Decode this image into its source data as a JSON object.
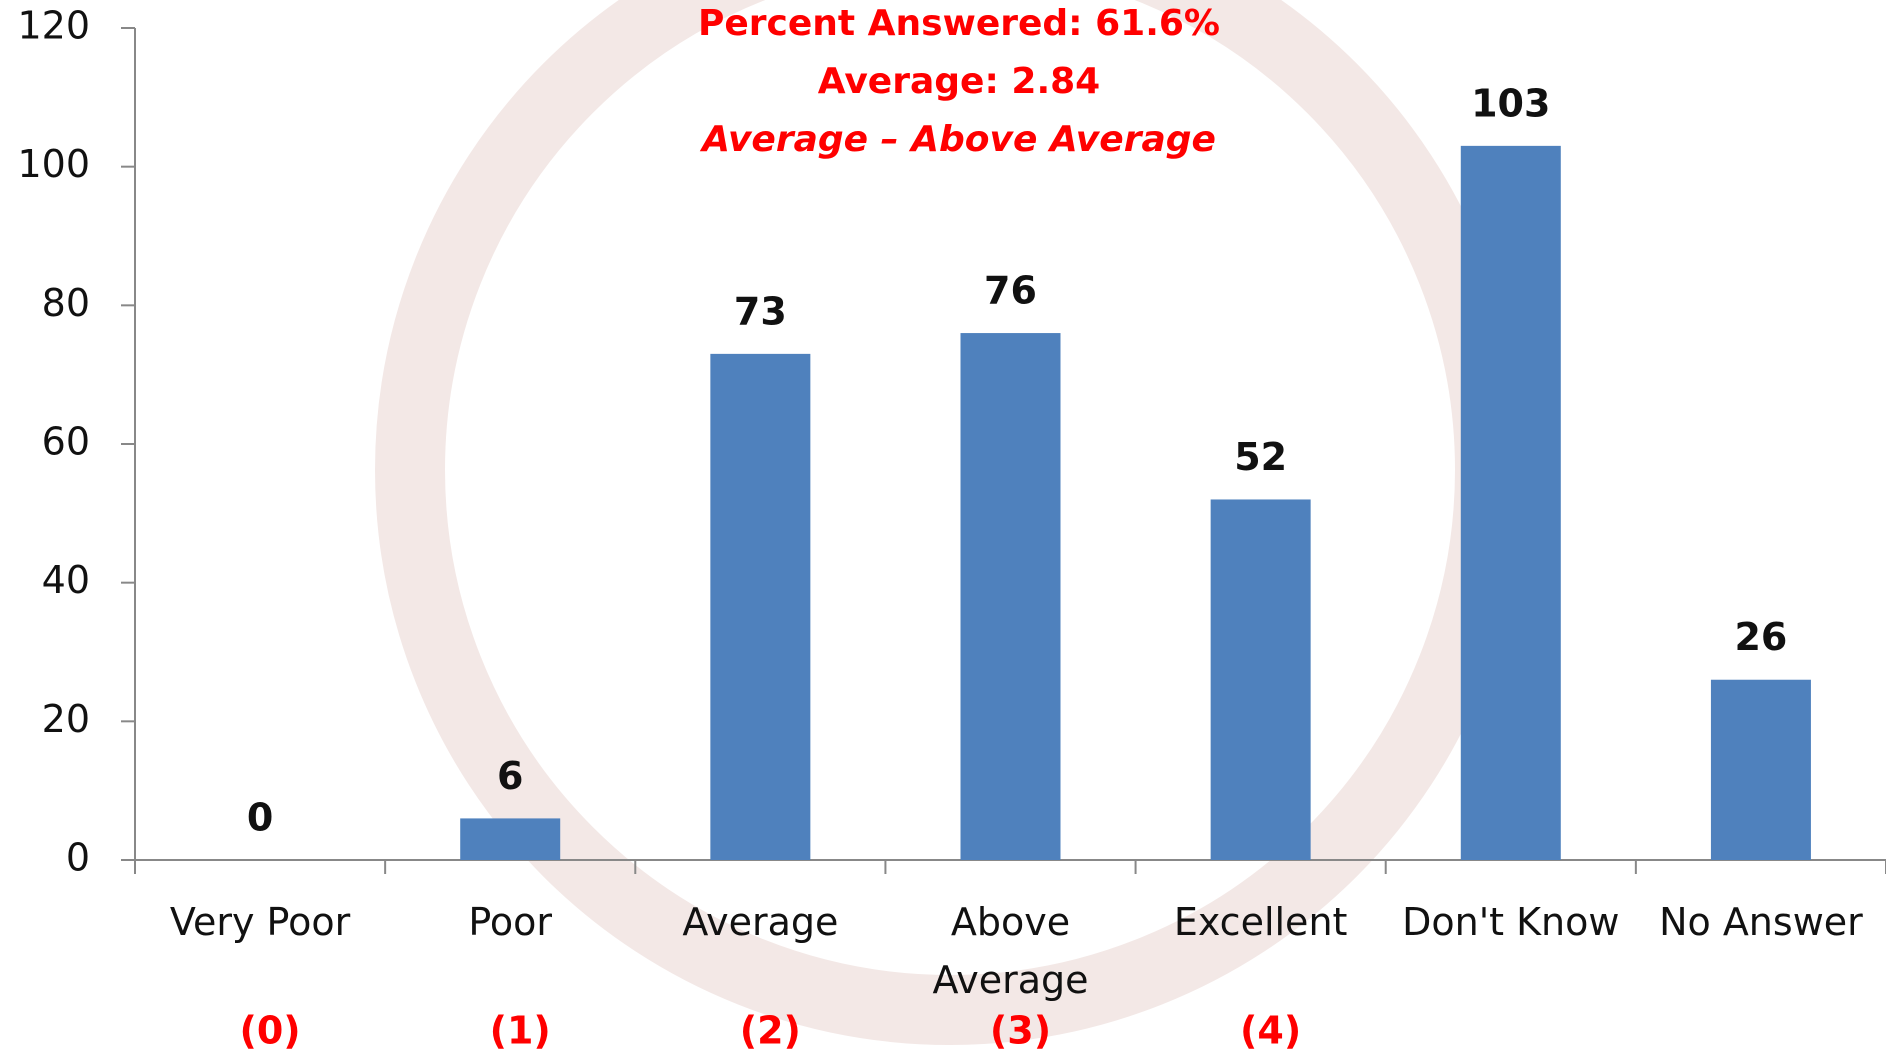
{
  "chart_data": {
    "type": "bar",
    "annotations": [
      "Percent Answered: 61.6%",
      "Average: 2.84",
      "Average – Above Average"
    ],
    "categories": [
      "Very Poor",
      "Poor",
      "Average",
      "Above Average",
      "Excellent",
      "Don't Know",
      "No Answer"
    ],
    "scale_labels": [
      "(0)",
      "(1)",
      "(2)",
      "(3)",
      "(4)"
    ],
    "values": [
      0,
      6,
      73,
      76,
      52,
      103,
      26
    ],
    "color": "#4f81bd",
    "ylim": [
      0,
      120
    ],
    "yticks": [
      0,
      20,
      40,
      60,
      80,
      100,
      120
    ],
    "grid": false
  }
}
